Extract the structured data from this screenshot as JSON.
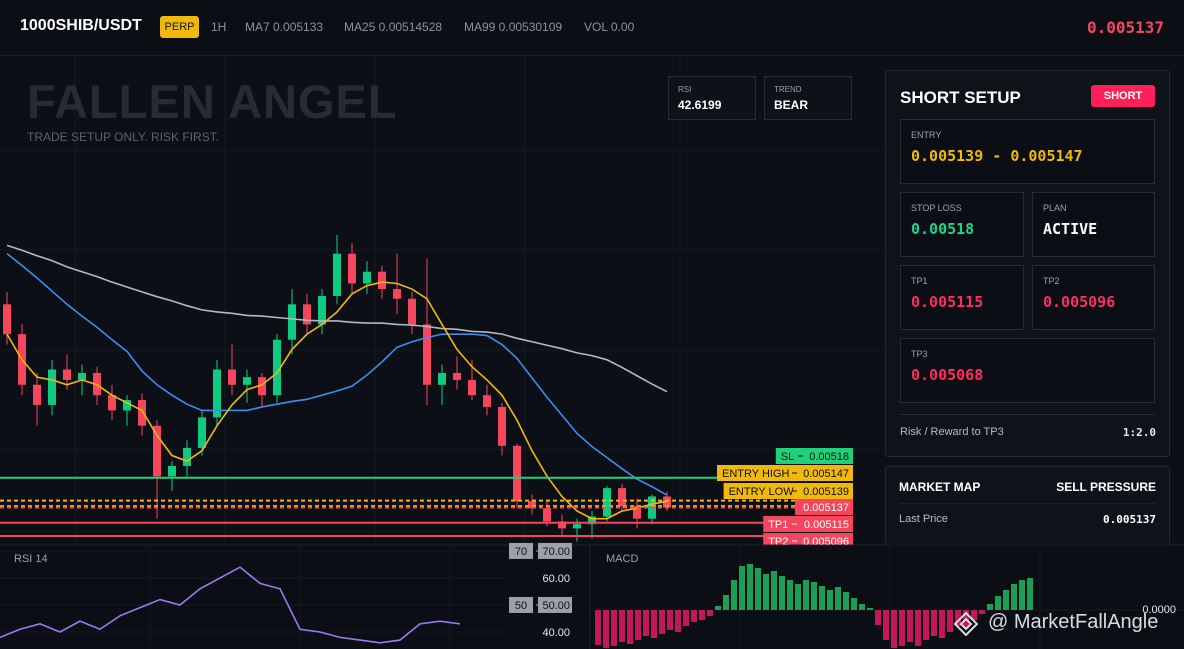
{
  "header": {
    "symbol": "1000SHIB/USDT",
    "badge": "PERP",
    "interval": "1H",
    "indicators": [
      "MA7 0.005133",
      "MA25 0.00514528",
      "MA99 0.00530109",
      "VOL 0.00"
    ],
    "price": "0.005137"
  },
  "overlay": {
    "title": "FALLEN ANGEL",
    "subtitle": "TRADE SETUP ONLY. RISK FIRST.",
    "stats": [
      {
        "label": "RSI",
        "value": "42.6199"
      },
      {
        "label": "TREND",
        "value": "BEAR"
      }
    ]
  },
  "setup": {
    "title": "SHORT SETUP",
    "badge": "SHORT",
    "cards": [
      {
        "label": "ENTRY",
        "value": "0.005139 - 0.005147"
      },
      {
        "label": "STOP LOSS",
        "value": "0.00518"
      },
      {
        "label": "PLAN",
        "value": "ACTIVE"
      },
      {
        "label": "TP1",
        "value": "0.005115"
      },
      {
        "label": "TP2",
        "value": "0.005096"
      },
      {
        "label": "TP3",
        "value": "0.005068"
      }
    ],
    "footer_label": "Risk / Reward to TP3",
    "footer_value": "1:2.0"
  },
  "market_map": {
    "title": "MARKET MAP",
    "status": "SELL PRESSURE",
    "rows": [
      [
        "Last Price",
        "0.005137"
      ]
    ]
  },
  "watermark": "@ MarketFallAngle",
  "chart_data": [
    {
      "type": "candlestick",
      "open": [
        0.00543,
        0.005387,
        0.005314,
        0.005285,
        0.005336,
        0.005321,
        0.005331,
        0.005299,
        0.005277,
        0.005292,
        0.005255,
        0.005182,
        0.005197,
        0.005223,
        0.005267,
        0.005336,
        0.005314,
        0.005325,
        0.005299,
        0.005379,
        0.00543,
        0.005401,
        0.005442,
        0.005503,
        0.00546,
        0.005477,
        0.005452,
        0.005438,
        0.005401,
        0.005314,
        0.005331,
        0.005321,
        0.005299,
        0.005282,
        0.005226,
        0.005146,
        0.005136,
        0.005117,
        0.005107,
        0.005113,
        0.005124,
        0.005165,
        0.005139,
        0.005121,
        0.005153
      ],
      "high": [
        0.005448,
        0.005401,
        0.005331,
        0.00535,
        0.005358,
        0.005343,
        0.00534,
        0.005314,
        0.005299,
        0.005302,
        0.005263,
        0.005204,
        0.005234,
        0.005277,
        0.00535,
        0.005372,
        0.005336,
        0.005331,
        0.005387,
        0.005452,
        0.005445,
        0.005452,
        0.00553,
        0.005518,
        0.005492,
        0.005486,
        0.005503,
        0.005448,
        0.005496,
        0.005343,
        0.005355,
        0.00535,
        0.005314,
        0.005288,
        0.005229,
        0.005156,
        0.005146,
        0.005127,
        0.005121,
        0.005132,
        0.005168,
        0.005171,
        0.00515,
        0.005156,
        0.00516
      ],
      "low": [
        0.005372,
        0.005299,
        0.005255,
        0.00527,
        0.005307,
        0.005299,
        0.005285,
        0.005263,
        0.005255,
        0.005241,
        0.005121,
        0.005161,
        0.005182,
        0.005212,
        0.005255,
        0.005299,
        0.005288,
        0.005282,
        0.005288,
        0.005358,
        0.005387,
        0.005387,
        0.00543,
        0.005445,
        0.005445,
        0.005438,
        0.005416,
        0.005387,
        0.005285,
        0.005285,
        0.005307,
        0.005292,
        0.00527,
        0.005212,
        0.005136,
        0.005127,
        0.00511,
        0.005095,
        0.005088,
        0.005092,
        0.005117,
        0.005132,
        0.005107,
        0.005113,
        0.005132
      ],
      "close": [
        0.005387,
        0.005314,
        0.005285,
        0.005336,
        0.005321,
        0.005331,
        0.005299,
        0.005277,
        0.005292,
        0.005255,
        0.005182,
        0.005197,
        0.005223,
        0.005267,
        0.005336,
        0.005314,
        0.005325,
        0.005299,
        0.005379,
        0.00543,
        0.005401,
        0.005442,
        0.005503,
        0.00546,
        0.005477,
        0.005452,
        0.005438,
        0.005401,
        0.005314,
        0.005331,
        0.005321,
        0.005299,
        0.005282,
        0.005226,
        0.005146,
        0.005136,
        0.005117,
        0.005107,
        0.005113,
        0.005124,
        0.005165,
        0.005139,
        0.005121,
        0.005153,
        0.005137
      ],
      "up_color": "#0ecb81",
      "down_color": "#f6465d",
      "ylim": [
        0.005083,
        0.005788
      ],
      "lines": [
        {
          "color": "#b4b8c0",
          "values": [
            0.005515,
            0.005508,
            0.0055,
            0.005493,
            0.005484,
            0.005477,
            0.00547,
            0.005462,
            0.005455,
            0.005448,
            0.005441,
            0.005435,
            0.005428,
            0.005422,
            0.005419,
            0.005417,
            0.005414,
            0.005413,
            0.005411,
            0.005409,
            0.005407,
            0.005406,
            0.005406,
            0.005404,
            0.005403,
            0.005403,
            0.005401,
            0.0054,
            0.005398,
            0.005395,
            0.005394,
            0.005391,
            0.00539,
            0.005387,
            0.005381,
            0.005376,
            0.005371,
            0.005366,
            0.00536,
            0.005356,
            0.00535,
            0.005339,
            0.005327,
            0.005315,
            0.005304
          ]
        },
        {
          "color": "#3f8cf0",
          "values": [
            0.005503,
            0.005486,
            0.005468,
            0.005449,
            0.00543,
            0.005413,
            0.005397,
            0.005379,
            0.005362,
            0.005334,
            0.005314,
            0.005299,
            0.005286,
            0.005277,
            0.005277,
            0.005277,
            0.005277,
            0.005282,
            0.005286,
            0.00529,
            0.005293,
            0.005299,
            0.005305,
            0.005312,
            0.005328,
            0.005347,
            0.005368,
            0.005376,
            0.005382,
            0.005387,
            0.005387,
            0.005387,
            0.005385,
            0.005372,
            0.005352,
            0.005324,
            0.005296,
            0.00527,
            0.005244,
            0.005225,
            0.005209,
            0.005193,
            0.005178,
            0.005167,
            0.005155
          ]
        },
        {
          "color": "#f0b90b",
          "values": [
            0.005387,
            0.00535,
            0.005325,
            0.005321,
            0.005314,
            0.005321,
            0.005314,
            0.005299,
            0.005288,
            0.005277,
            0.005241,
            0.005212,
            0.005204,
            0.005219,
            0.005255,
            0.005285,
            0.005307,
            0.005314,
            0.005331,
            0.005365,
            0.005387,
            0.005401,
            0.005419,
            0.005445,
            0.005457,
            0.005462,
            0.00546,
            0.005452,
            0.005438,
            0.005401,
            0.005365,
            0.00534,
            0.005321,
            0.005299,
            0.005263,
            0.005219,
            0.005182,
            0.005153,
            0.005132,
            0.005121,
            0.005121,
            0.005132,
            0.005136,
            0.005142,
            0.005146
          ]
        }
      ],
      "levels": [
        {
          "label": "SL",
          "value": 0.00518,
          "color": "#1fd17a",
          "style": "solid"
        },
        {
          "label": "ENTRY HIGH",
          "value": 0.005147,
          "color": "#f0b90b",
          "style": "dashed"
        },
        {
          "label": "ENTRY LOW",
          "value": 0.005139,
          "color": "#f0b90b",
          "style": "dashed"
        },
        {
          "value": 0.005137,
          "color": "#f6465d",
          "style": "dashed"
        },
        {
          "label": "TP1",
          "value": 0.005115,
          "color": "#f6465d",
          "style": "solid"
        },
        {
          "label": "TP2",
          "value": 0.005096,
          "color": "#f6465d",
          "style": "solid"
        }
      ]
    },
    {
      "type": "line",
      "title": "RSI 14",
      "color": "#9b7cf0",
      "values": [
        38,
        41,
        43,
        40,
        44,
        41,
        46,
        49,
        52,
        50,
        56,
        60,
        64,
        58,
        56,
        41,
        40,
        38,
        37,
        36,
        37,
        43,
        44,
        43
      ],
      "ylim": [
        33.7,
        72.2
      ],
      "yticks": [
        {
          "value": 70,
          "label": "70.00"
        },
        {
          "value": 60,
          "label": "60.00"
        },
        {
          "value": 50,
          "label": "50.00"
        },
        {
          "value": 40,
          "label": "40.00"
        }
      ],
      "levels": [
        70,
        50
      ]
    },
    {
      "type": "bar",
      "title": "MACD",
      "up_color": "#1f9d55",
      "down_color": "#c2185b",
      "values": [
        -3.5e-06,
        -3.8e-06,
        -3.6e-06,
        -3.2e-06,
        -3.4e-06,
        -3e-06,
        -2.6e-06,
        -2.8e-06,
        -2.4e-06,
        -2e-06,
        -2.2e-06,
        -1.6e-06,
        -1.2e-06,
        -1e-06,
        -6e-07,
        4e-07,
        1.5e-06,
        3e-06,
        4.4e-06,
        4.6e-06,
        4.2e-06,
        3.6e-06,
        3.9e-06,
        3.4e-06,
        3e-06,
        2.6e-06,
        3e-06,
        2.8e-06,
        2.4e-06,
        2e-06,
        2.3e-06,
        1.8e-06,
        1.2e-06,
        6e-07,
        2e-07,
        -1.5e-06,
        -3e-06,
        -3.8e-06,
        -3.6e-06,
        -3.2e-06,
        -3.6e-06,
        -3e-06,
        -2.6e-06,
        -2.8e-06,
        -2.2e-06,
        -1.6e-06,
        -1.8e-06,
        -1e-06,
        -4e-07,
        6e-07,
        1.4e-06,
        2e-06,
        2.6e-06,
        3e-06,
        3.2e-06
      ],
      "ylim": [
        -3.9e-06,
        6.5e-06
      ],
      "yticks": [
        {
          "value": 0,
          "label": "0.0000"
        }
      ]
    }
  ]
}
